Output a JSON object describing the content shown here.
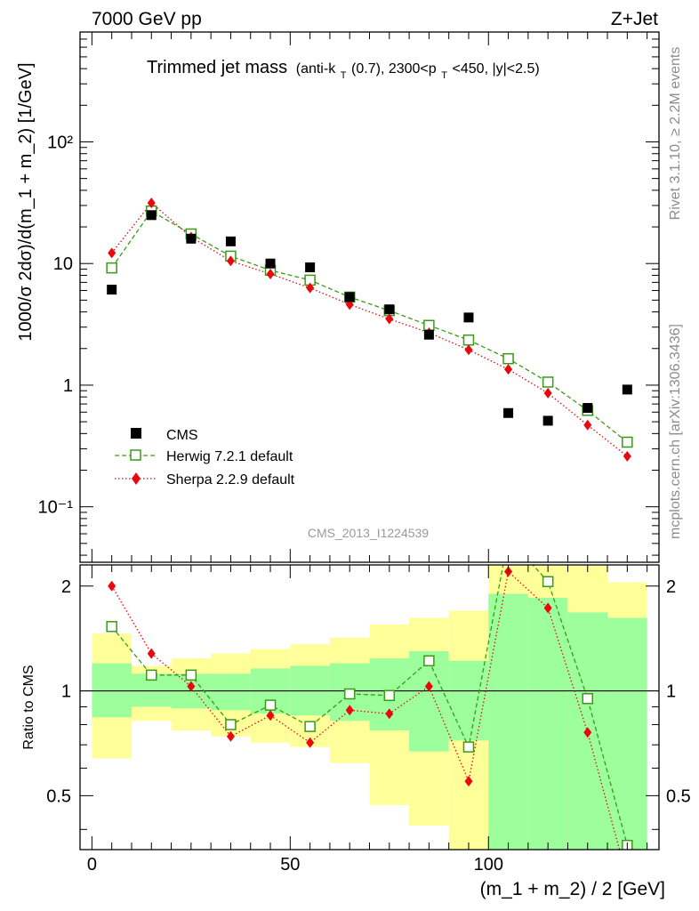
{
  "header": {
    "left": "7000 GeV pp",
    "right": "Z+Jet"
  },
  "side": {
    "rivet": "Rivet 3.1.10, ≥ 2.2M events",
    "mcplots": "mcplots.cern.ch [arXiv:1306.3436]"
  },
  "analysis_id": "CMS_2013_I1224539",
  "title": {
    "main": "Trimmed jet mass",
    "sub_pre": "(anti-k",
    "sub_T1": "T",
    "sub_mid": "(0.7), 2300<p",
    "sub_T2": "T",
    "sub_post": "<450, |y|<2.5)"
  },
  "legend": [
    {
      "label": "CMS",
      "color": "#000000",
      "marker": "square-filled"
    },
    {
      "label": "Herwig 7.2.1 default",
      "color": "#3a9a16",
      "marker": "square-open",
      "line": "dashed"
    },
    {
      "label": "Sherpa 2.2.9 default",
      "color": "#e8080e",
      "marker": "diamond",
      "line": "dotted"
    }
  ],
  "chart_data": [
    {
      "type": "scatter",
      "panel": "main",
      "ylabel": "1000/σ 2dσ)/d(m_1 + m_2) [1/GeV]",
      "yscale": "log",
      "ylim": [
        0.035,
        800
      ],
      "xlim": [
        -3,
        143
      ],
      "ytick_labels": [
        "10⁻¹",
        "1",
        "10",
        "10²"
      ],
      "x": [
        5,
        15,
        25,
        35,
        45,
        55,
        65,
        75,
        85,
        95,
        105,
        115,
        125,
        135
      ],
      "series": [
        {
          "name": "CMS",
          "values": [
            6.1,
            25,
            16,
            15.2,
            10,
            9.3,
            5.3,
            4.2,
            2.6,
            3.6,
            0.59,
            0.51,
            0.65,
            0.92
          ]
        },
        {
          "name": "Herwig 7.2.1 default",
          "values": [
            9.2,
            27,
            17.5,
            11.5,
            8.8,
            7.3,
            5.3,
            4.1,
            3.1,
            2.35,
            1.65,
            1.06,
            0.62,
            0.34
          ]
        },
        {
          "name": "Sherpa 2.2.9 default",
          "values": [
            12.2,
            31.5,
            16.5,
            10.5,
            8.2,
            6.3,
            4.6,
            3.5,
            2.7,
            1.95,
            1.35,
            0.86,
            0.47,
            0.26
          ]
        }
      ]
    },
    {
      "type": "line",
      "panel": "ratio",
      "ylabel": "Ratio to CMS",
      "xlabel": "(m_1 + m_2) / 2 [GeV]",
      "ylim": [
        0.35,
        2.3
      ],
      "xlim": [
        -3,
        143
      ],
      "xticks": [
        0,
        50,
        100
      ],
      "ytick_labels": [
        "0.5",
        "1",
        "2"
      ],
      "reference_line": 1,
      "x": [
        5,
        15,
        25,
        35,
        45,
        55,
        65,
        75,
        85,
        95,
        105,
        115,
        125,
        135
      ],
      "series": [
        {
          "name": "Herwig 7.2.1 default",
          "values": [
            1.53,
            1.11,
            1.11,
            0.8,
            0.91,
            0.79,
            0.98,
            0.97,
            1.22,
            0.69,
            2.75,
            2.06,
            0.95,
            0.36
          ]
        },
        {
          "name": "Sherpa 2.2.9 default",
          "values": [
            2.0,
            1.28,
            1.03,
            0.74,
            0.85,
            0.71,
            0.88,
            0.86,
            1.03,
            0.55,
            2.2,
            1.73,
            0.76,
            0.29
          ]
        }
      ],
      "bands": {
        "x_edges": [
          0,
          10,
          20,
          30,
          40,
          50,
          60,
          70,
          80,
          90,
          100,
          110,
          120,
          130,
          140
        ],
        "outer_color": "#ffff9a",
        "inner_color": "#9cff9c",
        "outer_low": [
          0.64,
          0.82,
          0.77,
          0.74,
          0.71,
          0.69,
          0.62,
          0.47,
          0.41,
          0.35,
          0.35,
          0.35,
          0.35,
          0.35
        ],
        "outer_high": [
          1.46,
          1.18,
          1.24,
          1.28,
          1.32,
          1.36,
          1.42,
          1.55,
          1.62,
          1.7,
          2.4,
          2.4,
          2.3,
          2.05
        ],
        "inner_low": [
          0.84,
          0.9,
          0.89,
          0.88,
          0.86,
          0.85,
          0.82,
          0.77,
          0.67,
          0.72,
          0.35,
          0.35,
          0.35,
          0.35
        ],
        "inner_high": [
          1.2,
          1.12,
          1.12,
          1.12,
          1.16,
          1.18,
          1.2,
          1.24,
          1.3,
          1.22,
          1.9,
          1.85,
          1.68,
          1.62
        ]
      }
    }
  ]
}
